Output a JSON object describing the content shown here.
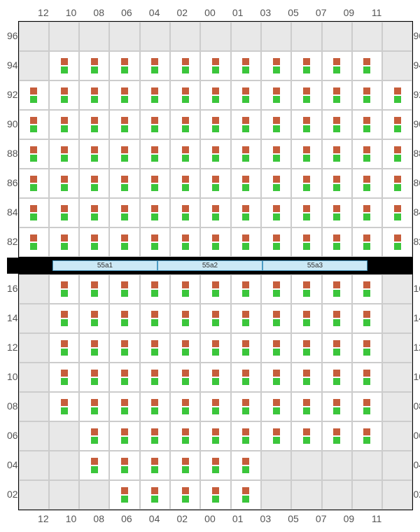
{
  "columns": [
    "12",
    "10",
    "08",
    "06",
    "04",
    "02",
    "00",
    "01",
    "03",
    "05",
    "07",
    "09",
    "11"
  ],
  "top_rows": [
    "96",
    "94",
    "92",
    "90",
    "88",
    "86",
    "84",
    "82"
  ],
  "bottom_rows": [
    "16",
    "14",
    "12",
    "10",
    "08",
    "06",
    "04",
    "02"
  ],
  "colors": {
    "top_square": "#c65d3b",
    "bottom_square": "#3bc63b",
    "cell_bg": "#ffffff",
    "empty_bg": "#e8e8e8",
    "grid_border": "#000000",
    "cell_border": "#cccccc",
    "mid_bg": "#cce9f5",
    "mid_border": "#4a9bc4",
    "label_color": "#555555"
  },
  "top_grid": [
    [
      0,
      0,
      0,
      0,
      0,
      0,
      0,
      0,
      0,
      0,
      0,
      0,
      0
    ],
    [
      0,
      1,
      1,
      1,
      1,
      1,
      1,
      1,
      1,
      1,
      1,
      1,
      0
    ],
    [
      1,
      1,
      1,
      1,
      1,
      1,
      1,
      1,
      1,
      1,
      1,
      1,
      1
    ],
    [
      1,
      1,
      1,
      1,
      1,
      1,
      1,
      1,
      1,
      1,
      1,
      1,
      1
    ],
    [
      1,
      1,
      1,
      1,
      1,
      1,
      1,
      1,
      1,
      1,
      1,
      1,
      1
    ],
    [
      1,
      1,
      1,
      1,
      1,
      1,
      1,
      1,
      1,
      1,
      1,
      1,
      1
    ],
    [
      1,
      1,
      1,
      1,
      1,
      1,
      1,
      1,
      1,
      1,
      1,
      1,
      1
    ],
    [
      1,
      1,
      1,
      1,
      1,
      1,
      1,
      1,
      1,
      1,
      1,
      1,
      1
    ]
  ],
  "bottom_grid": [
    [
      0,
      1,
      1,
      1,
      1,
      1,
      1,
      1,
      1,
      1,
      1,
      1,
      0
    ],
    [
      0,
      1,
      1,
      1,
      1,
      1,
      1,
      1,
      1,
      1,
      1,
      1,
      0
    ],
    [
      0,
      1,
      1,
      1,
      1,
      1,
      1,
      1,
      1,
      1,
      1,
      1,
      0
    ],
    [
      0,
      1,
      1,
      1,
      1,
      1,
      1,
      1,
      1,
      1,
      1,
      1,
      0
    ],
    [
      0,
      1,
      1,
      1,
      1,
      1,
      1,
      1,
      1,
      1,
      1,
      1,
      0
    ],
    [
      0,
      0,
      1,
      1,
      1,
      1,
      1,
      1,
      1,
      1,
      1,
      1,
      0
    ],
    [
      0,
      0,
      1,
      1,
      1,
      1,
      1,
      1,
      0,
      0,
      0,
      0,
      0
    ],
    [
      0,
      0,
      0,
      1,
      1,
      1,
      1,
      1,
      0,
      0,
      0,
      0,
      0
    ]
  ],
  "middle_cells": [
    "55a1",
    "55a2",
    "55a3"
  ]
}
